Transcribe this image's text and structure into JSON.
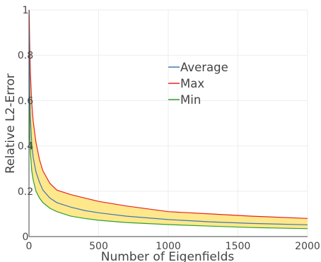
{
  "chart_data": {
    "type": "line",
    "title": "",
    "xlabel": "Number of Eigenfields",
    "ylabel": "Relative L2-Error",
    "xlim": [
      0,
      2000
    ],
    "ylim": [
      0,
      1
    ],
    "x_ticks": [
      0,
      500,
      1000,
      1500,
      2000
    ],
    "x_tick_labels": [
      "0",
      "500",
      "1000",
      "1500",
      "2000"
    ],
    "y_ticks": [
      0,
      0.2,
      0.4,
      0.6,
      0.8,
      1
    ],
    "y_tick_labels": [
      "0",
      "0.2",
      "0.4",
      "0.6",
      "0.8",
      "1"
    ],
    "grid": true,
    "legend_position": "center",
    "fill_between": {
      "upper": "Max",
      "lower": "Min",
      "color": "#ffe57f"
    },
    "x": [
      1,
      5,
      10,
      20,
      30,
      50,
      75,
      100,
      150,
      200,
      300,
      400,
      500,
      700,
      1000,
      1300,
      1600,
      2000
    ],
    "series": [
      {
        "name": "Average",
        "color": "#3d78b1",
        "values": [
          0.92,
          0.64,
          0.52,
          0.41,
          0.35,
          0.285,
          0.24,
          0.205,
          0.17,
          0.15,
          0.13,
          0.115,
          0.105,
          0.09,
          0.075,
          0.065,
          0.058,
          0.052
        ]
      },
      {
        "name": "Max",
        "color": "#e6261f",
        "values": [
          1.0,
          0.85,
          0.72,
          0.59,
          0.51,
          0.415,
          0.34,
          0.29,
          0.235,
          0.205,
          0.185,
          0.17,
          0.155,
          0.135,
          0.11,
          0.1,
          0.09,
          0.08
        ]
      },
      {
        "name": "Min",
        "color": "#2ca02c",
        "values": [
          0.7,
          0.45,
          0.37,
          0.29,
          0.25,
          0.2,
          0.17,
          0.15,
          0.125,
          0.11,
          0.09,
          0.08,
          0.072,
          0.062,
          0.053,
          0.046,
          0.04,
          0.035
        ]
      }
    ]
  }
}
